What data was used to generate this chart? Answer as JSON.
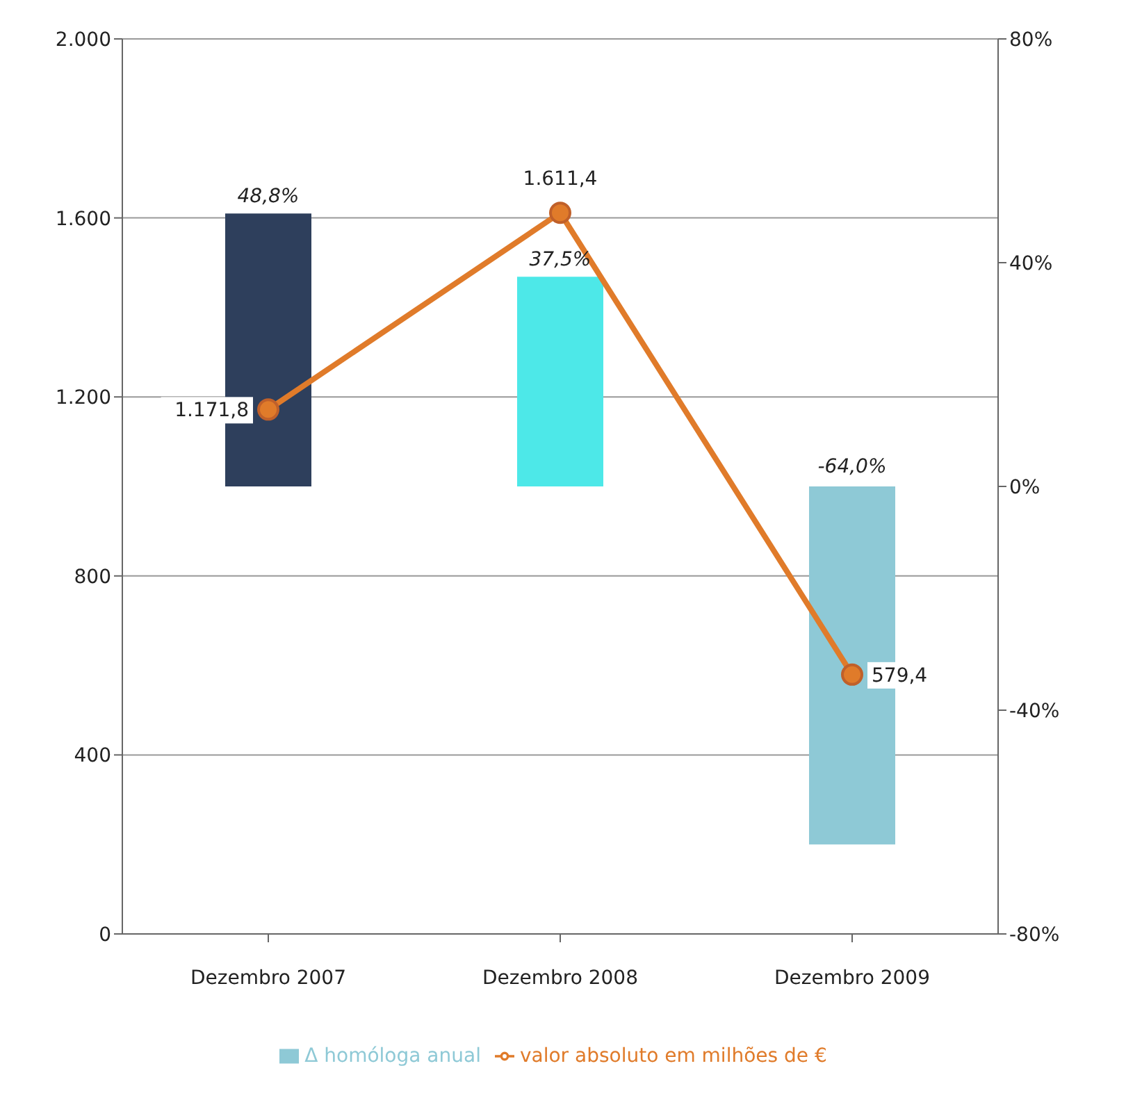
{
  "chart_data": {
    "type": "bar",
    "categories": [
      "Dezembro 2007",
      "Dezembro 2008",
      "Dezembro 2009"
    ],
    "series": [
      {
        "name": "Δ homóloga anual",
        "axis": "y2",
        "color": "#8ec9d6",
        "colors": [
          "#2e3f5c",
          "#4de8e8",
          "#8ec9d6"
        ],
        "values": [
          48.8,
          37.5,
          -64.0
        ],
        "value_labels": [
          "48,8%",
          "37,5%",
          "-64,0%"
        ]
      },
      {
        "name": "valor absoluto em milhões de €",
        "type": "line",
        "axis": "y",
        "color": "#e07b2a",
        "marker": "circle",
        "values": [
          1171.8,
          1611.4,
          579.4
        ],
        "value_labels": [
          "1.171,8",
          "1.611,4",
          "579,4"
        ]
      }
    ],
    "ylim": [
      0,
      2000
    ],
    "yticks": [
      0,
      400,
      800,
      {
        "value": 1200,
        "label": "1.200"
      },
      {
        "value": 1600,
        "label": "1.600"
      },
      {
        "value": 2000,
        "label": "2.000"
      }
    ],
    "y2lim": [
      -80,
      80
    ],
    "y2ticks": [
      {
        "value": -80,
        "label": "-80%"
      },
      {
        "value": -40,
        "label": "-40%"
      },
      {
        "value": 0,
        "label": "0%"
      },
      {
        "value": 40,
        "label": "40%"
      },
      {
        "value": 80,
        "label": "80%"
      }
    ],
    "grid": "y",
    "legend": "bottom"
  }
}
